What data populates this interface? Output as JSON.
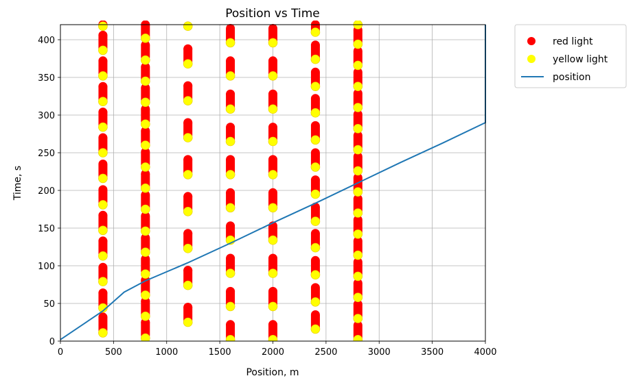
{
  "chart_data": {
    "type": "scatter",
    "title": "Position vs Time",
    "xlabel": "Position, m",
    "ylabel": "Time, s",
    "xlim": [
      0,
      4000
    ],
    "ylim": [
      0,
      420
    ],
    "xticks": [
      0,
      500,
      1000,
      1500,
      2000,
      2500,
      3000,
      3500,
      4000
    ],
    "yticks": [
      0,
      50,
      100,
      150,
      200,
      250,
      300,
      350,
      400
    ],
    "grid": true,
    "legend_position": "outside-top-right",
    "series": [
      {
        "name": "red light",
        "kind": "dots",
        "color": "#ff0000",
        "columns": [
          {
            "x": 400,
            "segments": [
              [
                15,
                32
              ],
              [
                47,
                64
              ],
              [
                82,
                98
              ],
              [
                116,
                133
              ],
              [
                150,
                167
              ],
              [
                185,
                201
              ],
              [
                219,
                235
              ],
              [
                253,
                270
              ],
              [
                287,
                304
              ],
              [
                321,
                338
              ],
              [
                355,
                372
              ],
              [
                389,
                406
              ],
              [
                420,
                420
              ]
            ]
          },
          {
            "x": 800,
            "segments": [
              [
                8,
                25
              ],
              [
                36,
                53
              ],
              [
                64,
                81
              ],
              [
                93,
                109
              ],
              [
                121,
                137
              ],
              [
                150,
                166
              ],
              [
                178,
                194
              ],
              [
                206,
                222
              ],
              [
                235,
                251
              ],
              [
                263,
                279
              ],
              [
                292,
                308
              ],
              [
                320,
                336
              ],
              [
                348,
                364
              ],
              [
                377,
                393
              ],
              [
                405,
                420
              ]
            ]
          },
          {
            "x": 1200,
            "segments": [
              [
                28,
                45
              ],
              [
                77,
                94
              ],
              [
                126,
                143
              ],
              [
                175,
                192
              ],
              [
                224,
                241
              ],
              [
                273,
                290
              ],
              [
                322,
                339
              ],
              [
                371,
                388
              ]
            ]
          },
          {
            "x": 1600,
            "segments": [
              [
                5,
                22
              ],
              [
                49,
                66
              ],
              [
                93,
                110
              ],
              [
                137,
                153
              ],
              [
                180,
                197
              ],
              [
                224,
                241
              ],
              [
                268,
                284
              ],
              [
                311,
                328
              ],
              [
                355,
                372
              ],
              [
                399,
                415
              ]
            ]
          },
          {
            "x": 2000,
            "segments": [
              [
                5,
                22
              ],
              [
                49,
                66
              ],
              [
                93,
                110
              ],
              [
                137,
                153
              ],
              [
                180,
                197
              ],
              [
                224,
                241
              ],
              [
                268,
                284
              ],
              [
                311,
                328
              ],
              [
                355,
                372
              ],
              [
                399,
                415
              ]
            ]
          },
          {
            "x": 2400,
            "segments": [
              [
                19,
                35
              ],
              [
                55,
                71
              ],
              [
                91,
                107
              ],
              [
                127,
                143
              ],
              [
                162,
                178
              ],
              [
                198,
                214
              ],
              [
                234,
                250
              ],
              [
                270,
                286
              ],
              [
                306,
                322
              ],
              [
                341,
                357
              ],
              [
                377,
                393
              ],
              [
                413,
                420
              ]
            ]
          },
          {
            "x": 2800,
            "segments": [
              [
                5,
                21
              ],
              [
                33,
                49
              ],
              [
                61,
                77
              ],
              [
                89,
                105
              ],
              [
                117,
                133
              ],
              [
                145,
                161
              ],
              [
                173,
                189
              ],
              [
                201,
                217
              ],
              [
                229,
                245
              ],
              [
                257,
                273
              ],
              [
                285,
                301
              ],
              [
                313,
                329
              ],
              [
                341,
                357
              ],
              [
                369,
                385
              ],
              [
                397,
                413
              ]
            ]
          }
        ]
      },
      {
        "name": "yellow light",
        "kind": "dots",
        "color": "#ffff00",
        "columns": [
          {
            "x": 400,
            "y": [
              11,
              44,
              79,
              113,
              147,
              181,
              216,
              250,
              284,
              318,
              352,
              386,
              418
            ]
          },
          {
            "x": 800,
            "y": [
              4,
              33,
              61,
              89,
              118,
              146,
              175,
              203,
              231,
              260,
              288,
              317,
              345,
              373,
              402
            ]
          },
          {
            "x": 1200,
            "y": [
              25,
              74,
              123,
              172,
              221,
              270,
              319,
              368,
              418
            ]
          },
          {
            "x": 1600,
            "y": [
              2,
              46,
              90,
              134,
              177,
              221,
              265,
              308,
              352,
              396
            ]
          },
          {
            "x": 2000,
            "y": [
              2,
              46,
              90,
              134,
              177,
              221,
              265,
              308,
              352,
              396
            ]
          },
          {
            "x": 2400,
            "y": [
              16,
              52,
              88,
              124,
              159,
              195,
              231,
              267,
              303,
              338,
              374,
              410
            ]
          },
          {
            "x": 2800,
            "y": [
              2,
              30,
              58,
              86,
              114,
              142,
              170,
              198,
              226,
              254,
              282,
              310,
              338,
              366,
              394,
              420
            ]
          }
        ]
      },
      {
        "name": "position",
        "kind": "line",
        "color": "#1f77b4",
        "x": [
          0,
          400,
          600,
          800,
          1200,
          1600,
          2000,
          2400,
          2800,
          3200,
          3600,
          4000,
          4000
        ],
        "y": [
          2,
          40,
          65,
          80,
          104,
          130,
          157,
          183,
          210,
          237,
          263,
          290,
          420
        ]
      }
    ]
  }
}
